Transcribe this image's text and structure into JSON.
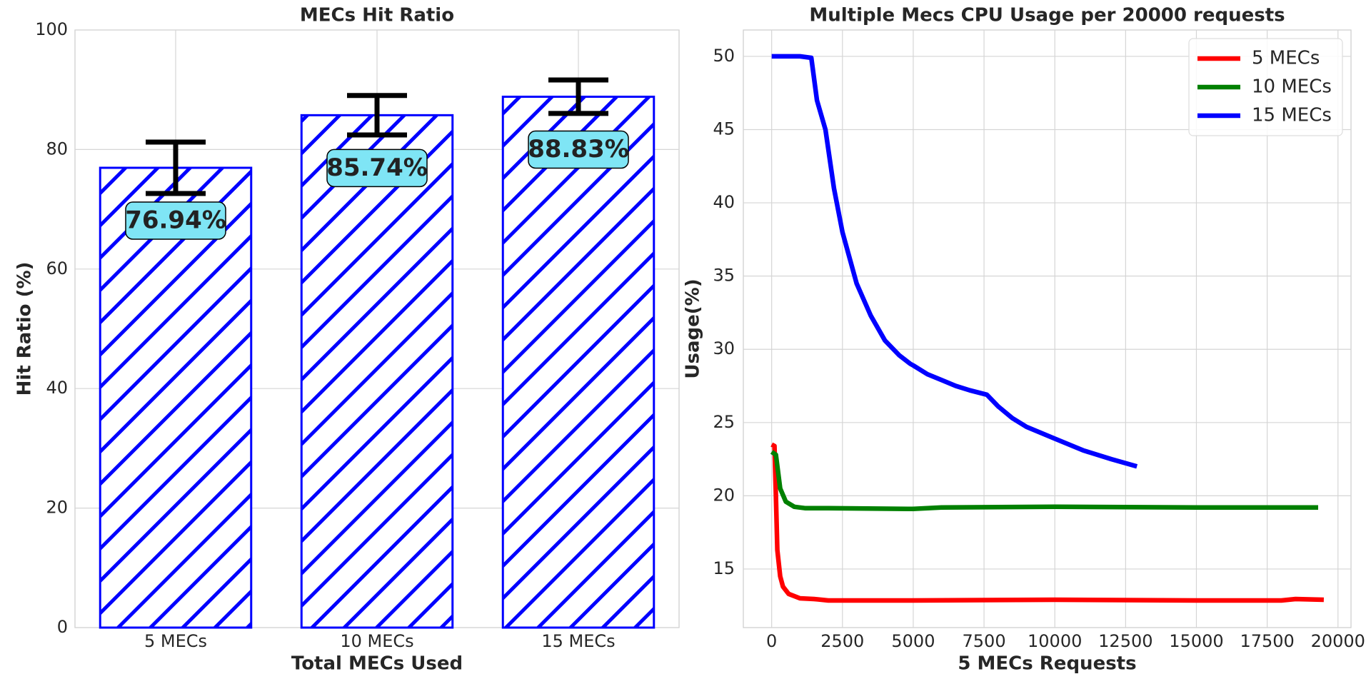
{
  "chart_data": [
    {
      "type": "bar",
      "title": "MECs Hit Ratio",
      "xlabel": "Total MECs Used",
      "ylabel": "Hit Ratio (%)",
      "categories": [
        "5 MECs",
        "10 MECs",
        "15 MECs"
      ],
      "values": [
        76.94,
        85.74,
        88.83
      ],
      "errors": [
        4.3,
        3.3,
        2.8
      ],
      "value_labels": [
        "76.94%",
        "85.74%",
        "88.83%"
      ],
      "color": "#0000ff",
      "ylim": [
        0,
        100
      ],
      "yticks": [
        0,
        20,
        40,
        60,
        80,
        100
      ],
      "grid": true
    },
    {
      "type": "line",
      "title": "Multiple Mecs CPU Usage per 20000 requests",
      "xlabel": "5 MECs Requests",
      "ylabel": "Usage(%)",
      "legend": "upper right",
      "grid": true,
      "xlim": [
        -1000,
        20460
      ],
      "ylim": [
        11,
        51.8
      ],
      "xticks": [
        0,
        2500,
        5000,
        7500,
        10000,
        12500,
        15000,
        17500,
        20000
      ],
      "yticks": [
        15,
        20,
        25,
        30,
        35,
        40,
        45,
        50
      ],
      "series": [
        {
          "name": "5 MECs",
          "color": "#ff0000",
          "x": [
            0,
            100,
            150,
            200,
            300,
            400,
            600,
            1000,
            1500,
            2000,
            5000,
            10000,
            15000,
            18000,
            18500,
            19500
          ],
          "values": [
            23.5,
            23.4,
            20,
            16.3,
            14.5,
            13.8,
            13.3,
            13.0,
            12.95,
            12.85,
            12.85,
            12.9,
            12.85,
            12.85,
            12.95,
            12.9
          ]
        },
        {
          "name": "10 MECs",
          "color": "#008000",
          "x": [
            0,
            150,
            300,
            500,
            800,
            1200,
            2000,
            5000,
            6000,
            10000,
            15000,
            19300
          ],
          "values": [
            23,
            22.8,
            20.5,
            19.6,
            19.25,
            19.15,
            19.15,
            19.1,
            19.2,
            19.25,
            19.2,
            19.2
          ]
        },
        {
          "name": "15 MECs",
          "color": "#0000ff",
          "x": [
            0,
            500,
            1000,
            1400,
            1600,
            1900,
            2200,
            2500,
            3000,
            3500,
            4000,
            4500,
            4900,
            5000,
            5500,
            6000,
            6500,
            7000,
            7600,
            8000,
            8500,
            9000,
            10000,
            11000,
            12000,
            12900
          ],
          "values": [
            50,
            50,
            50,
            49.9,
            47,
            45,
            41,
            38,
            34.5,
            32.3,
            30.6,
            29.6,
            29,
            28.9,
            28.3,
            27.9,
            27.5,
            27.2,
            26.9,
            26.1,
            25.3,
            24.7,
            23.9,
            23.1,
            22.5,
            22.0
          ]
        }
      ]
    }
  ]
}
